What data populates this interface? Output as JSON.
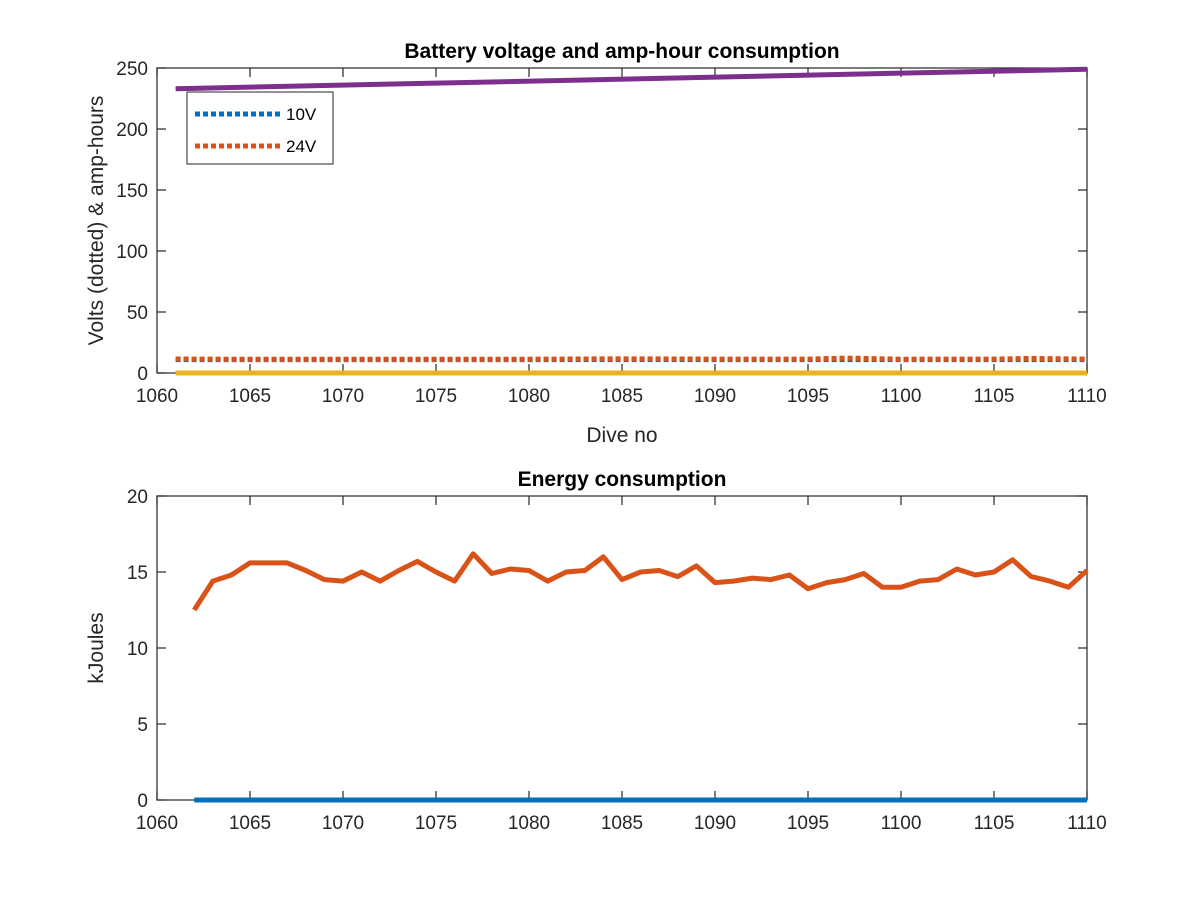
{
  "chart_data": [
    {
      "type": "line",
      "title": "Battery voltage and amp-hour consumption",
      "xlabel": "Dive no",
      "ylabel": "Volts (dotted) & amp-hours",
      "xlim": [
        1060,
        1110
      ],
      "ylim": [
        0,
        250
      ],
      "xticks": [
        1060,
        1065,
        1070,
        1075,
        1080,
        1085,
        1090,
        1095,
        1100,
        1105,
        1110
      ],
      "yticks": [
        0,
        50,
        100,
        150,
        200,
        250
      ],
      "grid": false,
      "legend": {
        "placement": "top-left",
        "entries": [
          "10V",
          "24V"
        ]
      },
      "series": [
        {
          "name": "10V",
          "style": "dotted",
          "color": "#0072BD",
          "x": [
            1061,
            1110
          ],
          "y": [
            11,
            11
          ]
        },
        {
          "name": "24V",
          "style": "dotted",
          "color": "#D95319",
          "x": [
            1061,
            1065,
            1070,
            1075,
            1080,
            1085,
            1090,
            1095,
            1097,
            1100,
            1105,
            1107,
            1110
          ],
          "y": [
            11.5,
            11.2,
            11.3,
            11.2,
            11.3,
            11.6,
            11.4,
            11.4,
            12.2,
            11.3,
            11.4,
            12.0,
            11.4
          ]
        },
        {
          "style": "solid",
          "color": "#EDB120",
          "x": [
            1061,
            1110
          ],
          "y": [
            0,
            0
          ]
        },
        {
          "style": "solid",
          "color": "#7E2F8E",
          "x": [
            1061,
            1110
          ],
          "y": [
            233,
            249
          ]
        }
      ]
    },
    {
      "type": "line",
      "title": "Energy consumption",
      "xlabel": "",
      "ylabel": "kJoules",
      "xlim": [
        1060,
        1110
      ],
      "ylim": [
        0,
        20
      ],
      "xticks": [
        1060,
        1065,
        1070,
        1075,
        1080,
        1085,
        1090,
        1095,
        1100,
        1105,
        1110
      ],
      "yticks": [
        0,
        5,
        10,
        15,
        20
      ],
      "grid": false,
      "series": [
        {
          "style": "solid",
          "color": "#0072BD",
          "x": [
            1062,
            1110
          ],
          "y": [
            0,
            0
          ]
        },
        {
          "style": "solid",
          "color": "#D95319",
          "x": [
            1062,
            1063,
            1064,
            1065,
            1066,
            1067,
            1068,
            1069,
            1070,
            1071,
            1072,
            1073,
            1074,
            1075,
            1076,
            1077,
            1078,
            1079,
            1080,
            1081,
            1082,
            1083,
            1084,
            1085,
            1086,
            1087,
            1088,
            1089,
            1090,
            1091,
            1092,
            1093,
            1094,
            1095,
            1096,
            1097,
            1098,
            1099,
            1100,
            1101,
            1102,
            1103,
            1104,
            1105,
            1106,
            1107,
            1108,
            1109,
            1110
          ],
          "y": [
            12.5,
            14.4,
            14.8,
            15.6,
            15.6,
            15.6,
            15.1,
            14.5,
            14.4,
            15.0,
            14.4,
            15.1,
            15.7,
            15.0,
            14.4,
            16.2,
            14.9,
            15.2,
            15.1,
            14.4,
            15.0,
            15.1,
            16.0,
            14.5,
            15.0,
            15.1,
            14.7,
            15.4,
            14.3,
            14.4,
            14.6,
            14.5,
            14.8,
            13.9,
            14.3,
            14.5,
            14.9,
            14.0,
            14.0,
            14.4,
            14.5,
            15.2,
            14.8,
            15.0,
            15.8,
            14.7,
            14.4,
            14.0,
            15.1
          ]
        }
      ]
    }
  ]
}
